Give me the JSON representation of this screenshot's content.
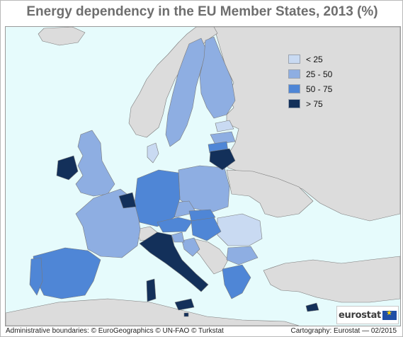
{
  "title": "Energy dependency in the EU Member States, 2013 (%)",
  "legend": [
    {
      "label": "< 25",
      "color": "#c9daf2"
    },
    {
      "label": "25 - 50",
      "color": "#8eaee2"
    },
    {
      "label": "50 - 75",
      "color": "#4f86d6"
    },
    {
      "label": "> 75",
      "color": "#13305a"
    }
  ],
  "colors": {
    "sea": "#e6fbfc",
    "non_eu": "#dcdcdc",
    "border": "#7a7a7a"
  },
  "logo": {
    "text": "eurostat"
  },
  "footer": {
    "admin": "Administrative boundaries: © EuroGeographics © UN-FAO © Turkstat",
    "cartography": "Cartography: Eurostat — 02/2015"
  }
}
